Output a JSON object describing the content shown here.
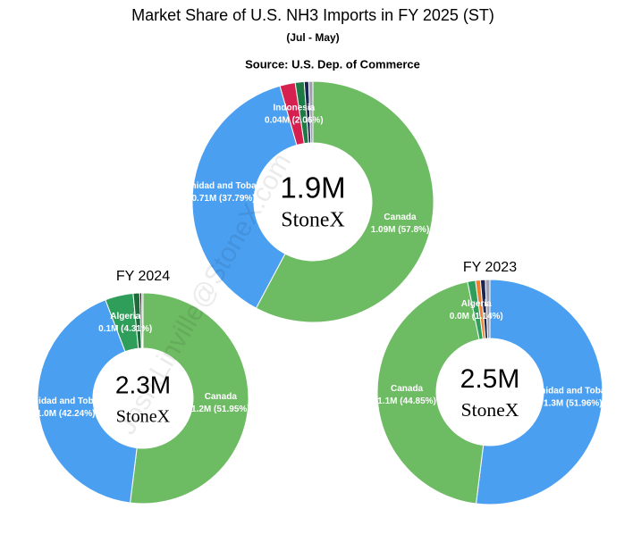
{
  "title": "Market Share of U.S. NH3 Imports in FY 2025 (ST)",
  "subtitle": "(Jul - May)",
  "source": "Source: U.S. Dep. of Commerce",
  "watermark": "Josh.Linville@StoneX.com",
  "chart_data": [
    {
      "type": "pie",
      "center_label": "1.9M",
      "logo": "StoneX",
      "categories": [
        "Canada",
        "Trinidad and Tobago",
        "Indonesia",
        null,
        null,
        null
      ],
      "values": [
        57.8,
        37.79,
        2.06,
        1.2,
        0.6,
        0.55
      ],
      "value_labels": [
        "1.09M (57.8%)",
        "0.71M (37.79%)",
        "0.04M (2.06%)",
        null,
        null,
        null
      ],
      "colors": [
        "#6dbb63",
        "#4a9ff0",
        "#d62050",
        "#1e7a45",
        "#1a2650",
        "#a0a0b0"
      ]
    },
    {
      "type": "pie",
      "title": "FY 2024",
      "center_label": "2.3M",
      "logo": "StoneX",
      "categories": [
        "Canada",
        "Trinidad and Tobago",
        "Algeria",
        null,
        null,
        null
      ],
      "values": [
        51.95,
        42.24,
        4.31,
        1.0,
        0.3,
        0.2
      ],
      "value_labels": [
        "1.2M (51.95%)",
        "1.0M (42.24%)",
        "0.1M (4.31%)",
        null,
        null,
        null
      ],
      "colors": [
        "#6dbb63",
        "#4a9ff0",
        "#2e9e5a",
        "#1e6b3a",
        "#111111",
        "#8a9a50"
      ]
    },
    {
      "type": "pie",
      "title": "FY 2023",
      "center_label": "2.5M",
      "logo": "StoneX",
      "categories": [
        "Trinidad and Tobago",
        "Canada",
        "Algeria",
        null,
        null,
        null
      ],
      "values": [
        51.96,
        44.85,
        1.14,
        0.7,
        0.7,
        0.65
      ],
      "value_labels": [
        "1.3M (51.96%)",
        "1.1M (44.85%)",
        "0.0M (1.14%)",
        null,
        null,
        null
      ],
      "colors": [
        "#4a9ff0",
        "#6dbb63",
        "#2e9e5a",
        "#f08030",
        "#1a2650",
        "#a0a0b0"
      ]
    }
  ]
}
